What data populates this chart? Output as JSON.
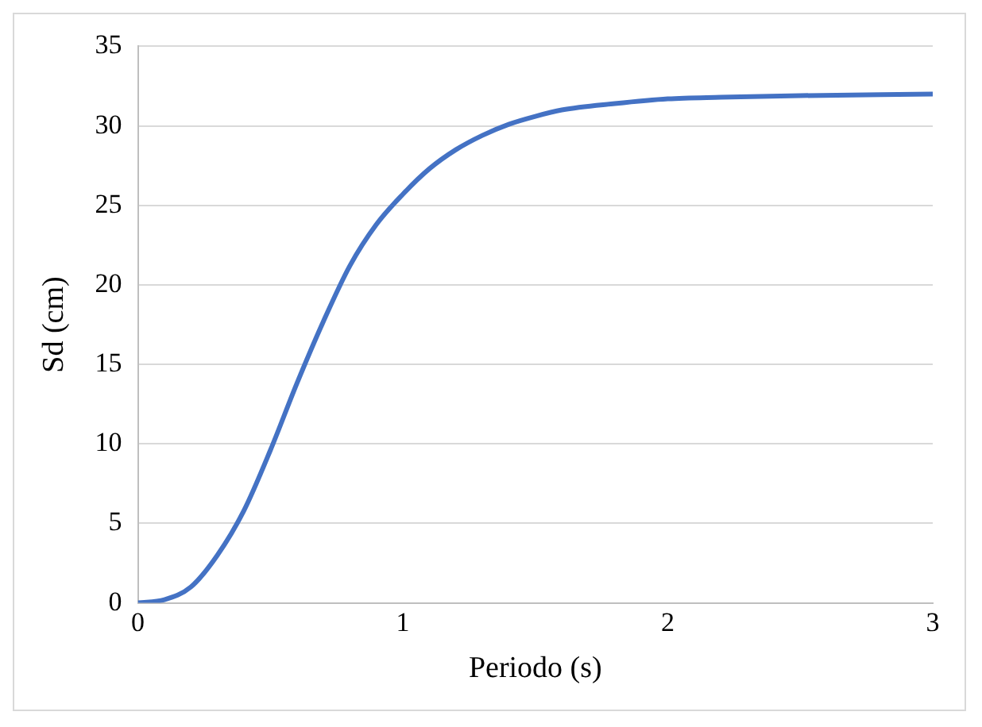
{
  "chart_data": {
    "type": "line",
    "xlabel": "Periodo (s)",
    "ylabel": "Sd (cm)",
    "xlim": [
      0,
      3
    ],
    "xticks": [
      0,
      1,
      2,
      3
    ],
    "ylim": [
      0,
      35
    ],
    "yticks": [
      0,
      5,
      10,
      15,
      20,
      25,
      30,
      35
    ],
    "grid": "y",
    "marker": "none",
    "line_style": "solid",
    "series": [
      {
        "color": "#4472c4",
        "x": [
          0,
          0.1,
          0.2,
          0.3,
          0.4,
          0.5,
          0.6,
          0.7,
          0.8,
          0.9,
          1.0,
          1.1,
          1.2,
          1.3,
          1.4,
          1.5,
          1.6,
          1.8,
          2.0,
          2.2,
          2.5,
          3.0
        ],
        "values": [
          0,
          0.2,
          1,
          3,
          5.8,
          9.6,
          13.8,
          17.7,
          21.2,
          23.8,
          25.7,
          27.3,
          28.5,
          29.4,
          30.1,
          30.6,
          31,
          31.4,
          31.7,
          31.8,
          31.9,
          32
        ]
      }
    ]
  }
}
